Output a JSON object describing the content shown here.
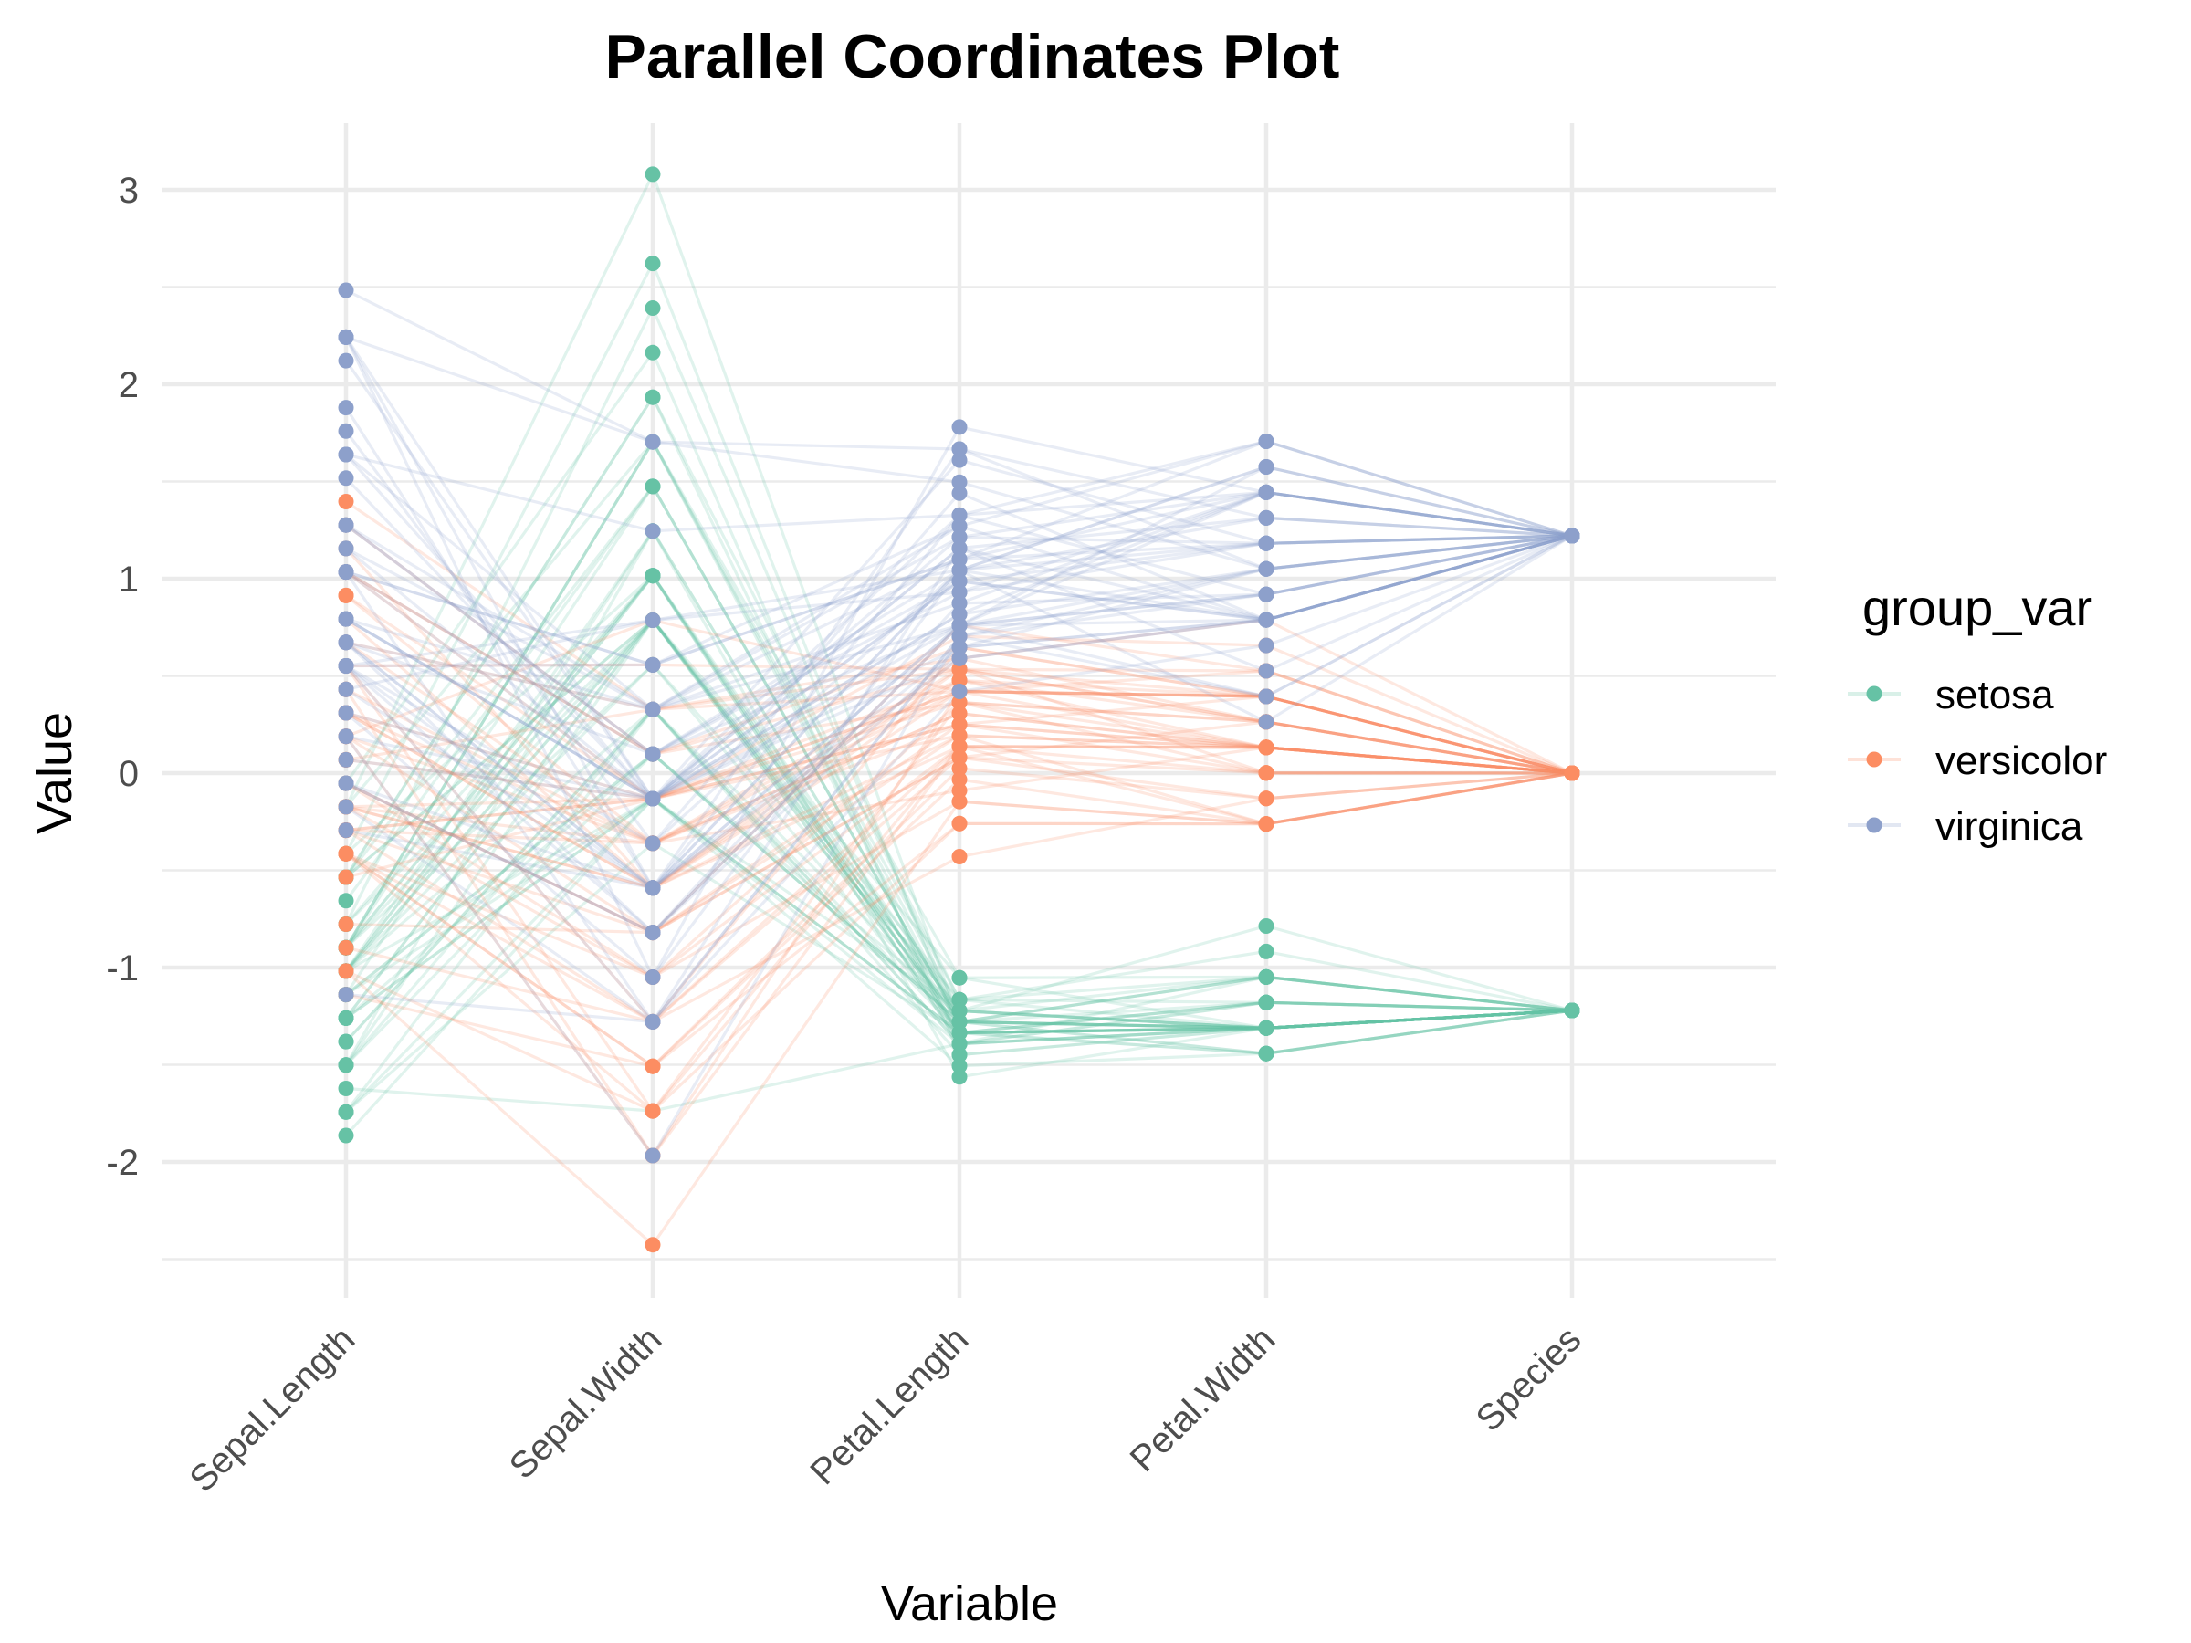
{
  "chart_data": {
    "type": "parallel_coordinates",
    "title": "Parallel Coordinates Plot",
    "xlabel": "Variable",
    "ylabel": "Value",
    "categories": [
      "Sepal.Length",
      "Sepal.Width",
      "Petal.Length",
      "Petal.Width",
      "Species"
    ],
    "y_ticks": [
      "3",
      "2",
      "1",
      "0",
      "-1",
      "-2"
    ],
    "y_tick_values": [
      3,
      2,
      1,
      0,
      -1,
      -2
    ],
    "ylim": [
      -2.6,
      3.35
    ],
    "grid": true,
    "scaling": "z-score per variable (species coded 1,2,3)",
    "legend": {
      "title": "group_var",
      "placement": "right",
      "entries": [
        {
          "label": "setosa",
          "color": "#66C2A5"
        },
        {
          "label": "versicolor",
          "color": "#FC8D62"
        },
        {
          "label": "virginica",
          "color": "#8DA0CB"
        }
      ]
    },
    "raw_rows": [
      [
        0,
        5.1,
        3.5,
        1.4,
        0.2
      ],
      [
        0,
        4.9,
        3.0,
        1.4,
        0.2
      ],
      [
        0,
        4.7,
        3.2,
        1.3,
        0.2
      ],
      [
        0,
        4.6,
        3.1,
        1.5,
        0.2
      ],
      [
        0,
        5.0,
        3.6,
        1.4,
        0.2
      ],
      [
        0,
        5.4,
        3.9,
        1.7,
        0.4
      ],
      [
        0,
        4.6,
        3.4,
        1.4,
        0.3
      ],
      [
        0,
        5.0,
        3.4,
        1.5,
        0.2
      ],
      [
        0,
        4.4,
        2.9,
        1.4,
        0.2
      ],
      [
        0,
        4.9,
        3.1,
        1.5,
        0.1
      ],
      [
        0,
        5.4,
        3.7,
        1.5,
        0.2
      ],
      [
        0,
        4.8,
        3.4,
        1.6,
        0.2
      ],
      [
        0,
        4.8,
        3.0,
        1.4,
        0.1
      ],
      [
        0,
        4.3,
        3.0,
        1.1,
        0.1
      ],
      [
        0,
        5.8,
        4.0,
        1.2,
        0.2
      ],
      [
        0,
        5.7,
        4.4,
        1.5,
        0.4
      ],
      [
        0,
        5.4,
        3.9,
        1.3,
        0.4
      ],
      [
        0,
        5.1,
        3.5,
        1.4,
        0.3
      ],
      [
        0,
        5.7,
        3.8,
        1.7,
        0.3
      ],
      [
        0,
        5.1,
        3.8,
        1.5,
        0.3
      ],
      [
        0,
        5.4,
        3.4,
        1.7,
        0.2
      ],
      [
        0,
        5.1,
        3.7,
        1.5,
        0.4
      ],
      [
        0,
        4.6,
        3.6,
        1.0,
        0.2
      ],
      [
        0,
        5.1,
        3.3,
        1.7,
        0.5
      ],
      [
        0,
        4.8,
        3.4,
        1.9,
        0.2
      ],
      [
        0,
        5.0,
        3.0,
        1.6,
        0.2
      ],
      [
        0,
        5.0,
        3.4,
        1.6,
        0.4
      ],
      [
        0,
        5.2,
        3.5,
        1.5,
        0.2
      ],
      [
        0,
        5.2,
        3.4,
        1.4,
        0.2
      ],
      [
        0,
        4.7,
        3.2,
        1.6,
        0.2
      ],
      [
        0,
        4.8,
        3.1,
        1.6,
        0.2
      ],
      [
        0,
        5.4,
        3.4,
        1.5,
        0.4
      ],
      [
        0,
        5.2,
        4.1,
        1.5,
        0.1
      ],
      [
        0,
        5.5,
        4.2,
        1.4,
        0.2
      ],
      [
        0,
        4.9,
        3.1,
        1.5,
        0.2
      ],
      [
        0,
        5.0,
        3.2,
        1.2,
        0.2
      ],
      [
        0,
        5.5,
        3.5,
        1.3,
        0.2
      ],
      [
        0,
        4.9,
        3.6,
        1.4,
        0.1
      ],
      [
        0,
        4.4,
        3.0,
        1.3,
        0.2
      ],
      [
        0,
        5.1,
        3.4,
        1.5,
        0.2
      ],
      [
        0,
        5.0,
        3.5,
        1.3,
        0.3
      ],
      [
        0,
        4.5,
        2.3,
        1.3,
        0.3
      ],
      [
        0,
        4.4,
        3.2,
        1.3,
        0.2
      ],
      [
        0,
        5.0,
        3.5,
        1.6,
        0.6
      ],
      [
        0,
        5.1,
        3.8,
        1.9,
        0.4
      ],
      [
        0,
        4.8,
        3.0,
        1.4,
        0.3
      ],
      [
        0,
        5.1,
        3.8,
        1.6,
        0.2
      ],
      [
        0,
        4.6,
        3.2,
        1.4,
        0.2
      ],
      [
        0,
        5.3,
        3.7,
        1.5,
        0.2
      ],
      [
        0,
        5.0,
        3.3,
        1.4,
        0.2
      ],
      [
        1,
        7.0,
        3.2,
        4.7,
        1.4
      ],
      [
        1,
        6.4,
        3.2,
        4.5,
        1.5
      ],
      [
        1,
        6.9,
        3.1,
        4.9,
        1.5
      ],
      [
        1,
        5.5,
        2.3,
        4.0,
        1.3
      ],
      [
        1,
        6.5,
        2.8,
        4.6,
        1.5
      ],
      [
        1,
        5.7,
        2.8,
        4.5,
        1.3
      ],
      [
        1,
        6.3,
        3.3,
        4.7,
        1.6
      ],
      [
        1,
        4.9,
        2.4,
        3.3,
        1.0
      ],
      [
        1,
        6.6,
        2.9,
        4.6,
        1.3
      ],
      [
        1,
        5.2,
        2.7,
        3.9,
        1.4
      ],
      [
        1,
        5.0,
        2.0,
        3.5,
        1.0
      ],
      [
        1,
        5.9,
        3.0,
        4.2,
        1.5
      ],
      [
        1,
        6.0,
        2.2,
        4.0,
        1.0
      ],
      [
        1,
        6.1,
        2.9,
        4.7,
        1.4
      ],
      [
        1,
        5.6,
        2.9,
        3.6,
        1.3
      ],
      [
        1,
        6.7,
        3.1,
        4.4,
        1.4
      ],
      [
        1,
        5.6,
        3.0,
        4.5,
        1.5
      ],
      [
        1,
        5.8,
        2.7,
        4.1,
        1.0
      ],
      [
        1,
        6.2,
        2.2,
        4.5,
        1.5
      ],
      [
        1,
        5.6,
        2.5,
        3.9,
        1.1
      ],
      [
        1,
        5.9,
        3.2,
        4.8,
        1.8
      ],
      [
        1,
        6.1,
        2.8,
        4.0,
        1.3
      ],
      [
        1,
        6.3,
        2.5,
        4.9,
        1.5
      ],
      [
        1,
        6.1,
        2.8,
        4.7,
        1.2
      ],
      [
        1,
        6.4,
        2.9,
        4.3,
        1.3
      ],
      [
        1,
        6.6,
        3.0,
        4.4,
        1.4
      ],
      [
        1,
        6.8,
        2.8,
        4.8,
        1.4
      ],
      [
        1,
        6.7,
        3.0,
        5.0,
        1.7
      ],
      [
        1,
        6.0,
        2.9,
        4.5,
        1.5
      ],
      [
        1,
        5.7,
        2.6,
        3.5,
        1.0
      ],
      [
        1,
        5.5,
        2.4,
        3.8,
        1.1
      ],
      [
        1,
        5.5,
        2.4,
        3.7,
        1.0
      ],
      [
        1,
        5.8,
        2.7,
        3.9,
        1.2
      ],
      [
        1,
        6.0,
        2.7,
        5.1,
        1.6
      ],
      [
        1,
        5.4,
        3.0,
        4.5,
        1.5
      ],
      [
        1,
        6.0,
        3.4,
        4.5,
        1.6
      ],
      [
        1,
        6.7,
        3.1,
        4.7,
        1.5
      ],
      [
        1,
        6.3,
        2.3,
        4.4,
        1.3
      ],
      [
        1,
        5.6,
        3.0,
        4.1,
        1.3
      ],
      [
        1,
        5.5,
        2.5,
        4.0,
        1.3
      ],
      [
        1,
        5.5,
        2.6,
        4.4,
        1.2
      ],
      [
        1,
        6.1,
        3.0,
        4.6,
        1.4
      ],
      [
        1,
        5.8,
        2.6,
        4.0,
        1.2
      ],
      [
        1,
        5.0,
        2.3,
        3.3,
        1.0
      ],
      [
        1,
        5.6,
        2.7,
        4.2,
        1.3
      ],
      [
        1,
        5.7,
        3.0,
        4.2,
        1.2
      ],
      [
        1,
        5.7,
        2.9,
        4.2,
        1.3
      ],
      [
        1,
        6.2,
        2.9,
        4.3,
        1.3
      ],
      [
        1,
        5.1,
        2.5,
        3.0,
        1.1
      ],
      [
        1,
        5.7,
        2.8,
        4.1,
        1.3
      ],
      [
        2,
        6.3,
        3.3,
        6.0,
        2.5
      ],
      [
        2,
        5.8,
        2.7,
        5.1,
        1.9
      ],
      [
        2,
        7.1,
        3.0,
        5.9,
        2.1
      ],
      [
        2,
        6.3,
        2.9,
        5.6,
        1.8
      ],
      [
        2,
        6.5,
        3.0,
        5.8,
        2.2
      ],
      [
        2,
        7.6,
        3.0,
        6.6,
        2.1
      ],
      [
        2,
        4.9,
        2.5,
        4.5,
        1.7
      ],
      [
        2,
        7.3,
        2.9,
        6.3,
        1.8
      ],
      [
        2,
        6.7,
        2.5,
        5.8,
        1.8
      ],
      [
        2,
        7.2,
        3.6,
        6.1,
        2.5
      ],
      [
        2,
        6.5,
        3.2,
        5.1,
        2.0
      ],
      [
        2,
        6.4,
        2.7,
        5.3,
        1.9
      ],
      [
        2,
        6.8,
        3.0,
        5.5,
        2.1
      ],
      [
        2,
        5.7,
        2.5,
        5.0,
        2.0
      ],
      [
        2,
        5.8,
        2.8,
        5.1,
        2.4
      ],
      [
        2,
        6.4,
        3.2,
        5.3,
        2.3
      ],
      [
        2,
        6.5,
        3.0,
        5.5,
        1.8
      ],
      [
        2,
        7.7,
        3.8,
        6.7,
        2.2
      ],
      [
        2,
        7.7,
        2.6,
        6.9,
        2.3
      ],
      [
        2,
        6.0,
        2.2,
        5.0,
        1.5
      ],
      [
        2,
        6.9,
        3.2,
        5.7,
        2.3
      ],
      [
        2,
        5.6,
        2.8,
        4.9,
        2.0
      ],
      [
        2,
        7.7,
        2.8,
        6.7,
        2.0
      ],
      [
        2,
        6.3,
        2.7,
        4.9,
        1.8
      ],
      [
        2,
        6.7,
        3.3,
        5.7,
        2.1
      ],
      [
        2,
        7.2,
        3.2,
        6.0,
        1.8
      ],
      [
        2,
        6.2,
        2.8,
        4.8,
        1.8
      ],
      [
        2,
        6.1,
        3.0,
        4.9,
        1.8
      ],
      [
        2,
        6.4,
        2.8,
        5.6,
        2.1
      ],
      [
        2,
        7.2,
        3.0,
        5.8,
        1.6
      ],
      [
        2,
        7.4,
        2.8,
        6.1,
        1.9
      ],
      [
        2,
        7.9,
        3.8,
        6.4,
        2.0
      ],
      [
        2,
        6.4,
        2.8,
        5.6,
        2.2
      ],
      [
        2,
        6.3,
        2.8,
        5.1,
        1.5
      ],
      [
        2,
        6.1,
        2.6,
        5.6,
        1.4
      ],
      [
        2,
        7.7,
        3.0,
        6.1,
        2.3
      ],
      [
        2,
        6.3,
        3.4,
        5.6,
        2.4
      ],
      [
        2,
        6.4,
        3.1,
        5.5,
        1.8
      ],
      [
        2,
        6.0,
        3.0,
        4.8,
        1.8
      ],
      [
        2,
        6.9,
        3.1,
        5.4,
        2.1
      ],
      [
        2,
        6.7,
        3.1,
        5.6,
        2.4
      ],
      [
        2,
        6.9,
        3.1,
        5.1,
        2.3
      ],
      [
        2,
        5.8,
        2.7,
        5.1,
        1.9
      ],
      [
        2,
        6.8,
        3.2,
        5.9,
        2.3
      ],
      [
        2,
        6.7,
        3.3,
        5.7,
        2.5
      ],
      [
        2,
        6.7,
        3.0,
        5.2,
        2.3
      ],
      [
        2,
        6.3,
        2.5,
        5.0,
        1.9
      ],
      [
        2,
        6.5,
        3.0,
        5.2,
        2.0
      ],
      [
        2,
        6.2,
        3.4,
        5.4,
        2.3
      ],
      [
        2,
        5.9,
        3.0,
        5.1,
        1.8
      ]
    ]
  }
}
